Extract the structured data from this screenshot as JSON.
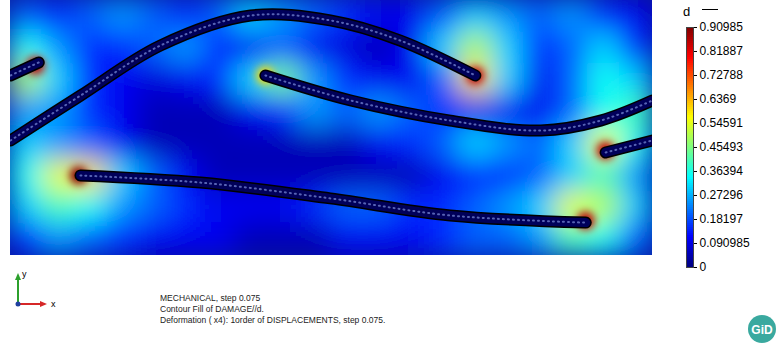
{
  "chart_data": {
    "type": "heatmap",
    "xlabel": "x",
    "ylabel": "y",
    "annotations": [
      "MECHANICAL, step 0.075",
      "Contour Fill of DAMAGE//d.",
      "Deformation ( x4): 1order of DISPLACEMENTS, step 0.075."
    ],
    "logo": "GiD",
    "tick_labels": false,
    "xlim": [
      0,
      1
    ],
    "ylim": [
      0,
      1
    ],
    "cells": [
      [
        0.2,
        0.15,
        0.2,
        0.25,
        0.2,
        0.15,
        0.2,
        0.3,
        0.25,
        0.2,
        0.15,
        0.1,
        0.1,
        0.2,
        0.3,
        0.25,
        0.2,
        0.25,
        0.15,
        0.1
      ],
      [
        0.35,
        0.25,
        0.15,
        0.15,
        0.2,
        0.25,
        0.15,
        0.1,
        0.2,
        0.1,
        0.08,
        0.05,
        0.1,
        0.3,
        0.5,
        0.3,
        0.15,
        0.2,
        0.3,
        0.15
      ],
      [
        0.5,
        0.3,
        0.15,
        0.1,
        0.08,
        0.1,
        0.15,
        0.3,
        0.45,
        0.25,
        0.15,
        0.1,
        0.1,
        0.2,
        0.6,
        0.3,
        0.1,
        0.2,
        0.35,
        0.3
      ],
      [
        0.25,
        0.25,
        0.15,
        0.1,
        0.05,
        0.05,
        0.05,
        0.1,
        0.15,
        0.25,
        0.2,
        0.25,
        0.2,
        0.15,
        0.1,
        0.1,
        0.1,
        0.2,
        0.35,
        0.4
      ],
      [
        0.3,
        0.25,
        0.2,
        0.1,
        0.05,
        0.05,
        0.05,
        0.05,
        0.05,
        0.05,
        0.05,
        0.1,
        0.15,
        0.2,
        0.3,
        0.25,
        0.2,
        0.3,
        0.55,
        0.35
      ],
      [
        0.35,
        0.55,
        0.6,
        0.3,
        0.2,
        0.1,
        0.05,
        0.05,
        0.05,
        0.05,
        0.05,
        0.05,
        0.05,
        0.1,
        0.15,
        0.15,
        0.2,
        0.3,
        0.4,
        0.25
      ],
      [
        0.3,
        0.4,
        0.35,
        0.25,
        0.2,
        0.15,
        0.1,
        0.1,
        0.1,
        0.15,
        0.2,
        0.2,
        0.15,
        0.15,
        0.2,
        0.25,
        0.3,
        0.55,
        0.5,
        0.3
      ],
      [
        0.15,
        0.25,
        0.2,
        0.15,
        0.1,
        0.1,
        0.1,
        0.05,
        0.05,
        0.05,
        0.1,
        0.1,
        0.1,
        0.15,
        0.2,
        0.2,
        0.25,
        0.4,
        0.35,
        0.2
      ]
    ],
    "peaks": {
      "x": [
        0.039,
        0.106,
        0.724,
        0.896,
        0.927,
        0.397
      ],
      "y": [
        0.745,
        0.314,
        0.706,
        0.137,
        0.412,
        0.706
      ],
      "values": [
        0.85,
        0.9,
        0.85,
        0.85,
        0.85,
        0.6
      ]
    },
    "cracks": [
      {
        "x": [
          0,
          0.044
        ],
        "y": [
          0.706,
          0.757
        ]
      },
      {
        "x": [
          0,
          0.109,
          0.234,
          0.374,
          0.498,
          0.607,
          0.724
        ],
        "y": [
          0.451,
          0.627,
          0.824,
          0.941,
          0.922,
          0.843,
          0.706
        ]
      },
      {
        "x": [
          0.397,
          0.53,
          0.685,
          0.826,
          0.919,
          1.0
        ],
        "y": [
          0.706,
          0.608,
          0.529,
          0.49,
          0.529,
          0.608
        ]
      },
      {
        "x": [
          0.109,
          0.296,
          0.498,
          0.685,
          0.896
        ],
        "y": [
          0.314,
          0.286,
          0.224,
          0.157,
          0.129
        ]
      },
      {
        "x": [
          0.927,
          1.0
        ],
        "y": [
          0.404,
          0.451
        ]
      }
    ],
    "colorbar": {
      "label": "d",
      "range": [
        0,
        0.90985
      ],
      "ticks": [
        0,
        0.090985,
        0.18197,
        0.27296,
        0.36394,
        0.45493,
        0.54591,
        0.6369,
        0.72788,
        0.81887,
        0.90985
      ]
    }
  }
}
